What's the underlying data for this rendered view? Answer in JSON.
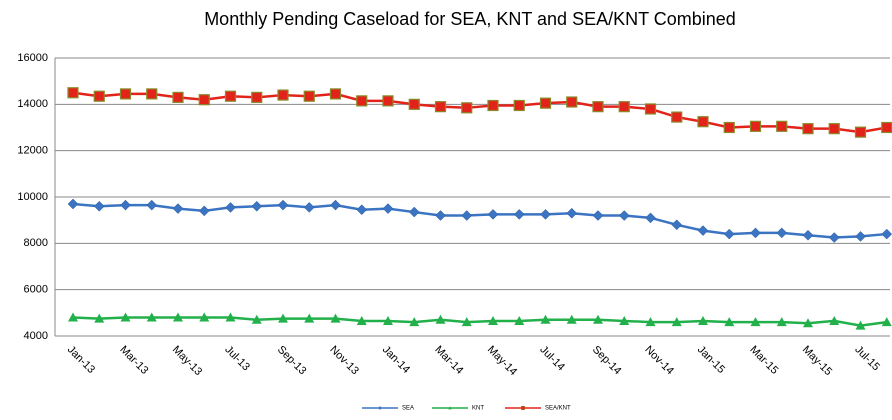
{
  "chart_data": {
    "type": "line",
    "title": "Monthly Pending Caseload for SEA, KNT and SEA/KNT Combined",
    "categories": [
      "Jan-13",
      null,
      "Mar-13",
      null,
      "May-13",
      null,
      "Jul-13",
      null,
      "Sep-13",
      null,
      "Nov-13",
      null,
      "Jan-14",
      null,
      "Mar-14",
      null,
      "May-14",
      null,
      "Jul-14",
      null,
      "Sep-14",
      null,
      "Nov-14",
      null,
      "Jan-15",
      null,
      "Mar-15",
      null,
      "May-15",
      null,
      "Jul-15",
      null
    ],
    "series": [
      {
        "name": "SEA",
        "color": "#3b74c2",
        "marker": "diamond",
        "values": [
          9700,
          9600,
          9650,
          9650,
          9500,
          9400,
          9550,
          9600,
          9650,
          9550,
          9650,
          9450,
          9500,
          9350,
          9200,
          9200,
          9250,
          9250,
          9250,
          9300,
          9200,
          9200,
          9100,
          8800,
          8550,
          8400,
          8450,
          8450,
          8350,
          8250,
          8300,
          8400
        ]
      },
      {
        "name": "KNT",
        "color": "#22b04b",
        "marker": "triangle",
        "values": [
          4800,
          4750,
          4800,
          4800,
          4800,
          4800,
          4800,
          4700,
          4750,
          4750,
          4750,
          4650,
          4650,
          4600,
          4700,
          4600,
          4650,
          4650,
          4700,
          4700,
          4700,
          4650,
          4600,
          4600,
          4650,
          4600,
          4600,
          4600,
          4550,
          4650,
          4450,
          4600
        ]
      },
      {
        "name": "SEA/KNT",
        "color": "#e2231a",
        "marker": "square",
        "values": [
          14500,
          14350,
          14450,
          14450,
          14300,
          14200,
          14350,
          14300,
          14400,
          14350,
          14450,
          14150,
          14150,
          14000,
          13900,
          13850,
          13950,
          13950,
          14050,
          14100,
          13900,
          13900,
          13800,
          13450,
          13250,
          13000,
          13050,
          13050,
          12950,
          12950,
          12800,
          13000
        ]
      }
    ],
    "ylim": [
      4000,
      16000
    ],
    "yticks": [
      4000,
      6000,
      8000,
      10000,
      12000,
      14000,
      16000
    ],
    "grid": true,
    "legend": "bottom"
  }
}
